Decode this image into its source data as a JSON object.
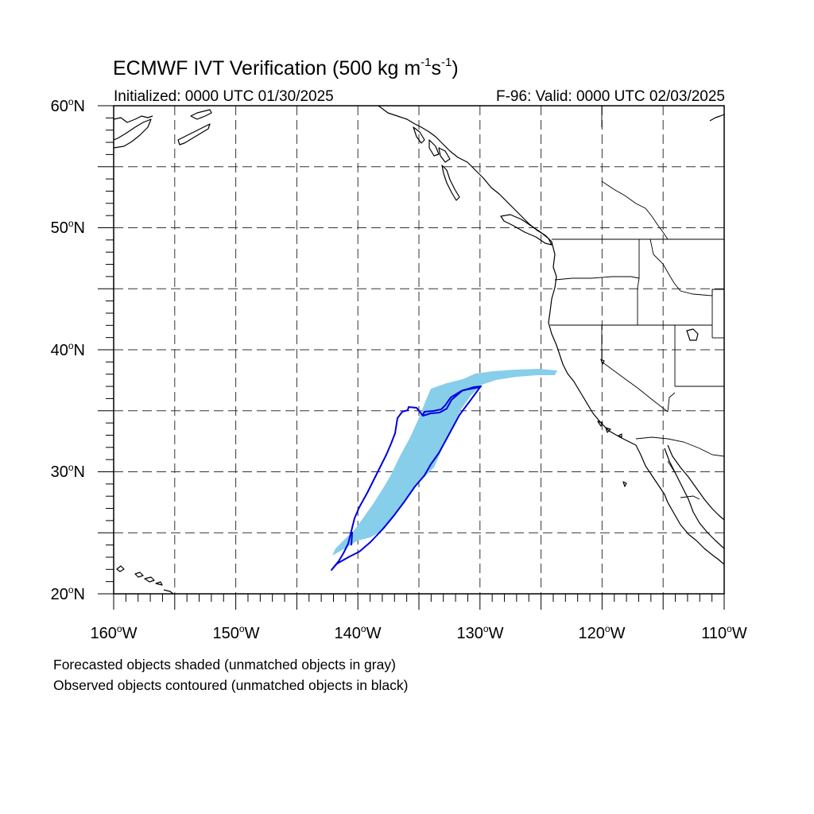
{
  "title": {
    "main": "ECMWF IVT Verification (500 kg m",
    "sup1": "-1",
    "mid": "s",
    "sup2": "-1",
    "end": ")"
  },
  "subtitle": {
    "initialized": "Initialized: 0000 UTC 01/30/2025",
    "valid": "F-96: Valid: 0000 UTC 02/03/2025"
  },
  "map": {
    "lon_range": [
      -160,
      -110
    ],
    "lat_range": [
      20,
      60
    ],
    "grid": "dashed every 5 degrees",
    "lat_labels": [
      {
        "num": "60",
        "hemi": "N"
      },
      {
        "num": "50",
        "hemi": "N"
      },
      {
        "num": "40",
        "hemi": "N"
      },
      {
        "num": "30",
        "hemi": "N"
      },
      {
        "num": "20",
        "hemi": "N"
      }
    ],
    "lon_labels": [
      {
        "num": "160",
        "hemi": "W"
      },
      {
        "num": "150",
        "hemi": "W"
      },
      {
        "num": "140",
        "hemi": "W"
      },
      {
        "num": "130",
        "hemi": "W"
      },
      {
        "num": "120",
        "hemi": "W"
      },
      {
        "num": "110",
        "hemi": "W"
      }
    ],
    "degree_symbol": "o",
    "forecast_object_color": "#87ceeb",
    "observed_object_color": "#0000dd",
    "coast_color": "#000000"
  },
  "footer": {
    "line1": "Forecasted objects shaded (unmatched objects in gray)",
    "line2": "Observed objects contoured (unmatched objects in black)"
  }
}
